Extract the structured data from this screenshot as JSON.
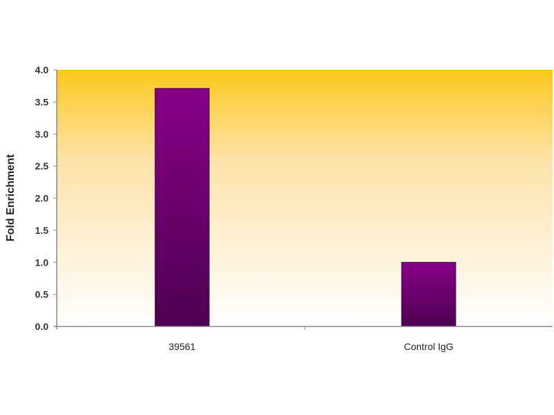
{
  "chart_data": {
    "type": "bar",
    "categories": [
      "39561",
      "Control IgG"
    ],
    "values": [
      3.71,
      1.0
    ],
    "title": "",
    "xlabel": "",
    "ylabel": "Fold Enrichment",
    "ylim": [
      0,
      4.0
    ],
    "yticks": [
      "0.0",
      "0.5",
      "1.0",
      "1.5",
      "2.0",
      "2.5",
      "3.0",
      "3.5",
      "4.0"
    ],
    "grid": false,
    "legend": "none",
    "colors": {
      "bar_top": "#870087",
      "bar_bottom": "#4e0052",
      "background_top": "#fcc81a",
      "background_bottom": "#ffffff"
    }
  }
}
